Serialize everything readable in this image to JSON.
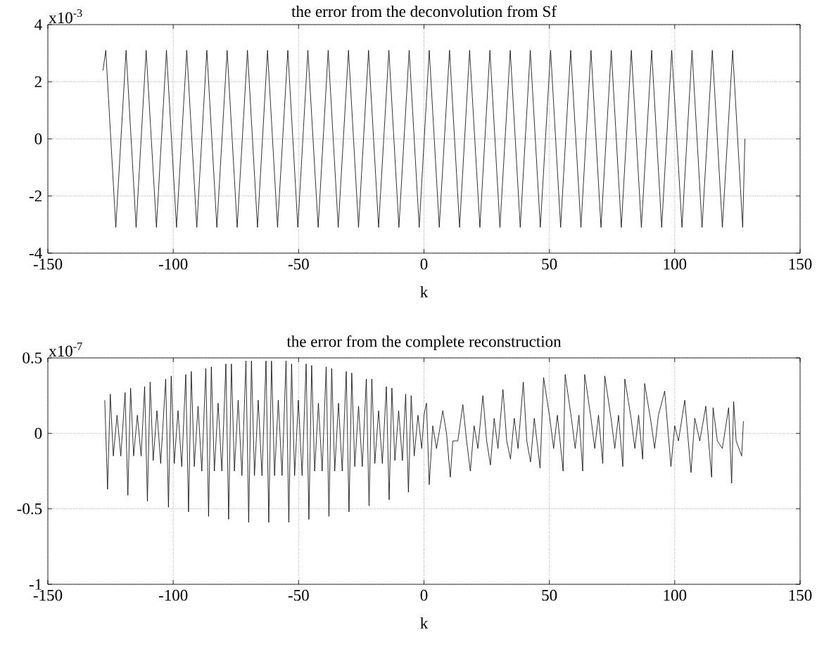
{
  "chart_data": [
    {
      "type": "line",
      "title": "the error from the deconvolution from Sf",
      "xlabel": "k",
      "annotations": [
        "x10$^{-3}$"
      ],
      "color": "#000000",
      "grid": true,
      "marker": "none",
      "line_style": "solid",
      "xlim": [
        -150,
        150
      ],
      "xticks": [
        -150,
        -100,
        -50,
        0,
        50,
        100,
        150
      ],
      "ylim": [
        -4,
        4
      ],
      "yticks": [
        -4,
        -2,
        0,
        2,
        4
      ],
      "x": [
        -128,
        -126.9,
        -122.9,
        -118.8,
        -114.8,
        -110.8,
        -106.7,
        -102.7,
        -98.7,
        -94.6,
        -90.6,
        -86.6,
        -82.6,
        -78.5,
        -74.5,
        -70.4,
        -66.4,
        -62.4,
        -58.4,
        -54.3,
        -50.3,
        -46.3,
        -42.2,
        -38.2,
        -34.2,
        -30.1,
        -26.1,
        -22.1,
        -18.1,
        -14.0,
        -10.0,
        -5.9,
        -1.9,
        2.1,
        6.1,
        10.2,
        14.2,
        18.2,
        22.3,
        26.3,
        30.3,
        34.4,
        38.4,
        42.4,
        46.4,
        50.5,
        54.5,
        58.5,
        62.6,
        66.6,
        70.6,
        74.7,
        78.7,
        82.7,
        86.7,
        90.8,
        94.8,
        98.8,
        102.9,
        106.9,
        110.9,
        115.0,
        119.0,
        123.1,
        127.1,
        128
      ],
      "values": [
        2.4,
        3.1,
        -3.1,
        3.1,
        -3.1,
        3.1,
        -3.1,
        3.1,
        -3.1,
        3.1,
        -3.1,
        3.1,
        -3.1,
        3.1,
        -3.1,
        3.1,
        -3.1,
        3.1,
        -3.1,
        3.1,
        -3.1,
        3.1,
        -3.1,
        3.1,
        -3.1,
        3.1,
        -3.1,
        3.1,
        -3.1,
        3.1,
        -3.1,
        3.1,
        -3.1,
        3.1,
        -3.1,
        3.1,
        -3.1,
        3.1,
        -3.1,
        3.1,
        -3.1,
        3.1,
        -3.1,
        3.1,
        -3.1,
        3.1,
        -3.1,
        3.1,
        -3.1,
        3.1,
        -3.1,
        3.1,
        -3.1,
        3.1,
        -3.1,
        3.1,
        -3.1,
        3.1,
        -3.1,
        3.1,
        -3.1,
        3.1,
        -3.1,
        3.1,
        -3.1,
        0
      ]
    },
    {
      "type": "line",
      "title": "the error from the complete reconstruction",
      "xlabel": "k",
      "annotations": [
        "x10$^{-7}$"
      ],
      "color": "#000000",
      "grid": true,
      "marker": "none",
      "line_style": "solid",
      "xlim": [
        -150,
        150
      ],
      "xticks": [
        -150,
        -100,
        -50,
        0,
        50,
        100,
        150
      ],
      "ylim": [
        -1,
        0.5
      ],
      "yticks": [
        -1,
        -0.5,
        0,
        0.5
      ],
      "x": [
        -127.3,
        -126.2,
        -125.1,
        -123.9,
        -122.4,
        -120.9,
        -119.2,
        -118.1,
        -117.0,
        -115.8,
        -114.3,
        -112.8,
        -111.4,
        -110.3,
        -109.2,
        -108.0,
        -106.5,
        -105.0,
        -103.0,
        -101.9,
        -100.8,
        -99.6,
        -98.1,
        -96.6,
        -95.0,
        -93.9,
        -92.8,
        -91.6,
        -90.1,
        -88.6,
        -87.0,
        -85.9,
        -84.8,
        -83.6,
        -82.1,
        -80.6,
        -79.0,
        -77.9,
        -76.8,
        -75.6,
        -74.1,
        -72.6,
        -71.0,
        -69.9,
        -68.8,
        -67.6,
        -66.1,
        -64.6,
        -63.0,
        -61.9,
        -60.8,
        -59.6,
        -58.1,
        -56.6,
        -55.0,
        -53.9,
        -52.8,
        -51.6,
        -50.1,
        -48.6,
        -47.0,
        -45.9,
        -44.8,
        -43.6,
        -42.1,
        -40.6,
        -39.0,
        -37.9,
        -36.8,
        -35.6,
        -34.1,
        -32.6,
        -31.0,
        -29.9,
        -28.8,
        -27.6,
        -26.1,
        -24.6,
        -23.0,
        -21.9,
        -20.8,
        -19.6,
        -18.1,
        -16.6,
        -15.0,
        -13.9,
        -12.8,
        -11.6,
        -10.1,
        -8.6,
        -7.3,
        -6.2,
        -5.1,
        -3.9,
        -2.4,
        -0.9,
        0.0,
        1.0,
        2.1,
        3.5,
        5.0,
        7.5,
        9.0,
        10.5,
        11.5,
        13.5,
        15.5,
        17.0,
        18.5,
        20.0,
        21.5,
        23.5,
        25.0,
        26.5,
        28.0,
        29.5,
        31.5,
        33.0,
        34.5,
        36.0,
        37.5,
        39.6,
        41.0,
        42.5,
        44.0,
        46.3,
        47.7,
        50.2,
        51.7,
        53.2,
        55.5,
        56.3,
        58.8,
        60.3,
        61.8,
        63.3,
        64.1,
        66.6,
        68.1,
        69.6,
        71.3,
        72.1,
        74.6,
        76.1,
        77.6,
        79.3,
        80.1,
        82.6,
        84.1,
        85.6,
        87.2,
        88.0,
        90.5,
        92.0,
        93.5,
        96.0,
        98.5,
        100.0,
        101.5,
        104.0,
        106.5,
        108.0,
        110.0,
        112.4,
        114.7,
        115.3,
        117.0,
        119.0,
        121.5,
        122.7,
        123.5,
        124.5,
        126.7,
        127.4
      ],
      "values": [
        0.22,
        -0.37,
        0.26,
        -0.15,
        0.12,
        -0.15,
        0.27,
        -0.41,
        0.3,
        -0.15,
        0.12,
        -0.15,
        0.31,
        -0.45,
        0.34,
        -0.18,
        0.15,
        -0.2,
        0.36,
        -0.49,
        0.38,
        -0.2,
        0.15,
        -0.22,
        0.39,
        -0.52,
        0.41,
        -0.22,
        0.18,
        -0.25,
        0.43,
        -0.55,
        0.44,
        -0.25,
        0.2,
        -0.25,
        0.46,
        -0.57,
        0.46,
        -0.25,
        0.22,
        -0.28,
        0.48,
        -0.59,
        0.48,
        -0.28,
        0.22,
        -0.28,
        0.48,
        -0.59,
        0.48,
        -0.28,
        0.22,
        -0.28,
        0.48,
        -0.59,
        0.46,
        -0.28,
        0.22,
        -0.28,
        0.46,
        -0.57,
        0.45,
        -0.25,
        0.2,
        -0.25,
        0.44,
        -0.55,
        0.43,
        -0.25,
        0.2,
        -0.25,
        0.41,
        -0.52,
        0.4,
        -0.22,
        0.18,
        -0.22,
        0.36,
        -0.48,
        0.36,
        -0.2,
        0.15,
        -0.2,
        0.31,
        -0.44,
        0.3,
        -0.18,
        0.15,
        -0.18,
        0.26,
        -0.39,
        0.25,
        -0.15,
        0.12,
        -0.1,
        0.12,
        0.2,
        -0.34,
        0.05,
        -0.1,
        0.15,
        0,
        -0.29,
        -0.05,
        -0.05,
        0.19,
        -0.05,
        -0.25,
        0.05,
        -0.1,
        0.25,
        -0.05,
        -0.21,
        0.1,
        -0.1,
        0.29,
        -0.05,
        -0.17,
        0.1,
        -0.1,
        0.34,
        -0.05,
        -0.19,
        0.1,
        -0.23,
        0.37,
        0.1,
        -0.1,
        0.12,
        -0.25,
        0.39,
        0.1,
        -0.1,
        0.12,
        -0.25,
        0.39,
        0.1,
        -0.1,
        0.12,
        -0.2,
        0.38,
        0.1,
        -0.1,
        0.12,
        -0.22,
        0.36,
        0.1,
        -0.1,
        0.12,
        -0.17,
        0.33,
        0.08,
        -0.1,
        0.12,
        0.28,
        -0.22,
        0.05,
        -0.05,
        0.22,
        -0.26,
        0.1,
        -0.05,
        0.18,
        -0.29,
        0.17,
        -0.05,
        -0.1,
        0.17,
        -0.33,
        0.21,
        -0.05,
        -0.15,
        0.08
      ]
    }
  ]
}
